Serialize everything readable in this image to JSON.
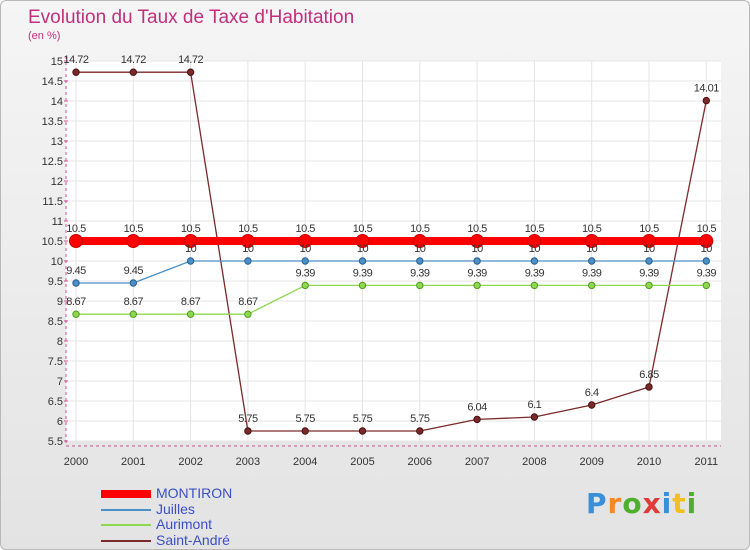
{
  "header": {
    "title": "Evolution du Taux de Taxe d'Habitation",
    "subtitle": "(en %)"
  },
  "logo": {
    "text": "Proxiti",
    "colors": [
      "#3a8fd8",
      "#f08a24",
      "#4caf2e",
      "#e03a3a",
      "#3a8fd8",
      "#f0c020",
      "#4caf2e"
    ]
  },
  "chart_data": {
    "type": "line",
    "title": "Evolution du Taux de Taxe d'Habitation",
    "subtitle": "(en %)",
    "xlabel": "",
    "ylabel": "",
    "ylim": [
      5.5,
      15
    ],
    "yticks": [
      "5.5",
      "6",
      "6.5",
      "7",
      "7.5",
      "8",
      "8.5",
      "9",
      "9.5",
      "10",
      "10.5",
      "11",
      "11.5",
      "12",
      "12.5",
      "13",
      "13.5",
      "14",
      "14.5",
      "15"
    ],
    "x": [
      "2000",
      "2001",
      "2002",
      "2003",
      "2004",
      "2005",
      "2006",
      "2007",
      "2008",
      "2009",
      "2010",
      "2011"
    ],
    "grid": true,
    "legend_position": "bottom-left",
    "series": [
      {
        "name": "MONTIRON",
        "color": "#ff0000",
        "style": "thick",
        "values": [
          10.5,
          10.5,
          10.5,
          10.5,
          10.5,
          10.5,
          10.5,
          10.5,
          10.5,
          10.5,
          10.5,
          10.5
        ],
        "labels": [
          "10.5",
          "10.5",
          "10.5",
          "10.5",
          "10.5",
          "10.5",
          "10.5",
          "10.5",
          "10.5",
          "10.5",
          "10.5",
          "10.5"
        ]
      },
      {
        "name": "Juilles",
        "color": "#4a90c8",
        "style": "thin",
        "values": [
          9.45,
          9.45,
          10,
          10,
          10,
          10,
          10,
          10,
          10,
          10,
          10,
          10
        ],
        "labels": [
          "9.45",
          "9.45",
          "10",
          "10",
          "10",
          "10",
          "10",
          "10",
          "10",
          "10",
          "10",
          "10"
        ]
      },
      {
        "name": "Aurimont",
        "color": "#8ed850",
        "style": "thin",
        "values": [
          8.67,
          8.67,
          8.67,
          8.67,
          9.39,
          9.39,
          9.39,
          9.39,
          9.39,
          9.39,
          9.39,
          9.39
        ],
        "labels": [
          "8.67",
          "8.67",
          "8.67",
          "8.67",
          "9.39",
          "9.39",
          "9.39",
          "9.39",
          "9.39",
          "9.39",
          "9.39",
          "9.39"
        ]
      },
      {
        "name": "Saint-André",
        "color": "#7a2a2a",
        "style": "thin",
        "values": [
          14.72,
          14.72,
          14.72,
          5.75,
          5.75,
          5.75,
          5.75,
          6.04,
          6.1,
          6.4,
          6.85,
          14.01
        ],
        "labels": [
          "14.72",
          "14.72",
          "14.72",
          "5.75",
          "5.75",
          "5.75",
          "5.75",
          "6.04",
          "6.1",
          "6.4",
          "6.85",
          "14.01"
        ]
      }
    ]
  }
}
